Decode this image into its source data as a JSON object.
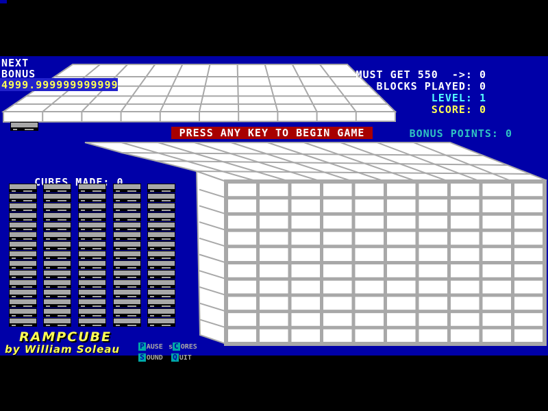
{
  "colors": {
    "background_blue": "#0000A8",
    "frame_black": "#000000",
    "highlight_box_blue": "#2222CC",
    "banner_red": "#A80000",
    "text_white": "#FFFFFF",
    "text_yellow": "#FFFF55",
    "text_cyan_bright": "#55FFFF",
    "text_teal": "#2FC2C2",
    "block_gray": "#A8A8A8",
    "menu_key_bg": "#00A8A8"
  },
  "hud_left": {
    "next_label": "NEXT",
    "bonus_label": "BONUS",
    "bonus_value": "4999.999999999999",
    "cubes_made_label": "CUBES MADE:",
    "cubes_made_value": "0"
  },
  "hud_right": {
    "must_get_label": "MUST GET 550  ->:",
    "must_get_value": "0",
    "blocks_played_label": "BLOCKS PLAYED:",
    "blocks_played_value": "0",
    "level_label": "LEVEL:",
    "level_value": "1",
    "score_label": "SCORE:",
    "score_value": "0",
    "bonus_points_label": "BONUS POINTS:",
    "bonus_points_value": "0"
  },
  "banner": {
    "text": "PRESS ANY KEY TO BEGIN GAME"
  },
  "playfield": {
    "ramp_grid": {
      "rows": 5,
      "cols": 10
    },
    "cube_grid": {
      "rows": 10,
      "cols": 10
    },
    "stacks": {
      "columns": 5,
      "blocks_per_column": 15
    },
    "next_preview_blocks": 1
  },
  "footer": {
    "title": "RAMPCUBE",
    "byline": "by William Soleau",
    "menu": [
      {
        "pre": "",
        "key": "P",
        "rest": "AUSE"
      },
      {
        "pre": "s",
        "key": "C",
        "rest": "ORES"
      },
      {
        "pre": "",
        "key": "S",
        "rest": "OUND"
      },
      {
        "pre": "",
        "key": "Q",
        "rest": "UIT"
      }
    ]
  }
}
